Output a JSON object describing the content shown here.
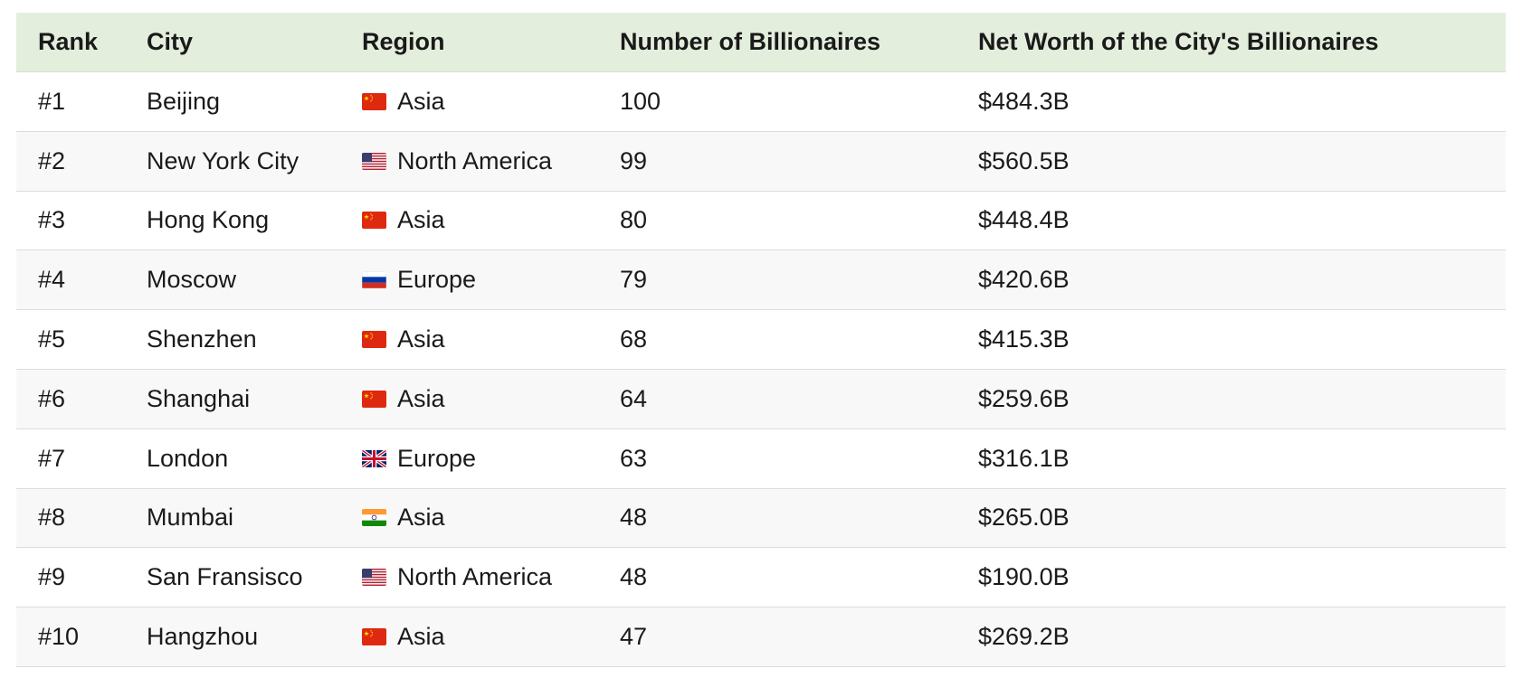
{
  "headers": {
    "rank": "Rank",
    "city": "City",
    "region": "Region",
    "number": "Number of Billionaires",
    "net_worth": "Net Worth of the City's Billionaires"
  },
  "rows": [
    {
      "rank": "#1",
      "city": "Beijing",
      "flag": "china-flag-icon",
      "region": "Asia",
      "number": "100",
      "net_worth": "$484.3B"
    },
    {
      "rank": "#2",
      "city": "New York City",
      "flag": "usa-flag-icon",
      "region": "North America",
      "number": "99",
      "net_worth": "$560.5B"
    },
    {
      "rank": "#3",
      "city": "Hong Kong",
      "flag": "china-flag-icon",
      "region": "Asia",
      "number": "80",
      "net_worth": "$448.4B"
    },
    {
      "rank": "#4",
      "city": "Moscow",
      "flag": "russia-flag-icon",
      "region": "Europe",
      "number": "79",
      "net_worth": "$420.6B"
    },
    {
      "rank": "#5",
      "city": "Shenzhen",
      "flag": "china-flag-icon",
      "region": "Asia",
      "number": "68",
      "net_worth": "$415.3B"
    },
    {
      "rank": "#6",
      "city": "Shanghai",
      "flag": "china-flag-icon",
      "region": "Asia",
      "number": "64",
      "net_worth": "$259.6B"
    },
    {
      "rank": "#7",
      "city": "London",
      "flag": "uk-flag-icon",
      "region": "Europe",
      "number": "63",
      "net_worth": "$316.1B"
    },
    {
      "rank": "#8",
      "city": "Mumbai",
      "flag": "india-flag-icon",
      "region": "Asia",
      "number": "48",
      "net_worth": "$265.0B"
    },
    {
      "rank": "#9",
      "city": "San Fransisco",
      "flag": "usa-flag-icon",
      "region": "North America",
      "number": "48",
      "net_worth": "$190.0B"
    },
    {
      "rank": "#10",
      "city": "Hangzhou",
      "flag": "china-flag-icon",
      "region": "Asia",
      "number": "47",
      "net_worth": "$269.2B"
    }
  ],
  "colors": {
    "header_bg": "#e4eedd",
    "alt_row_bg": "#f8f8f8",
    "border": "#dcdcdc"
  }
}
